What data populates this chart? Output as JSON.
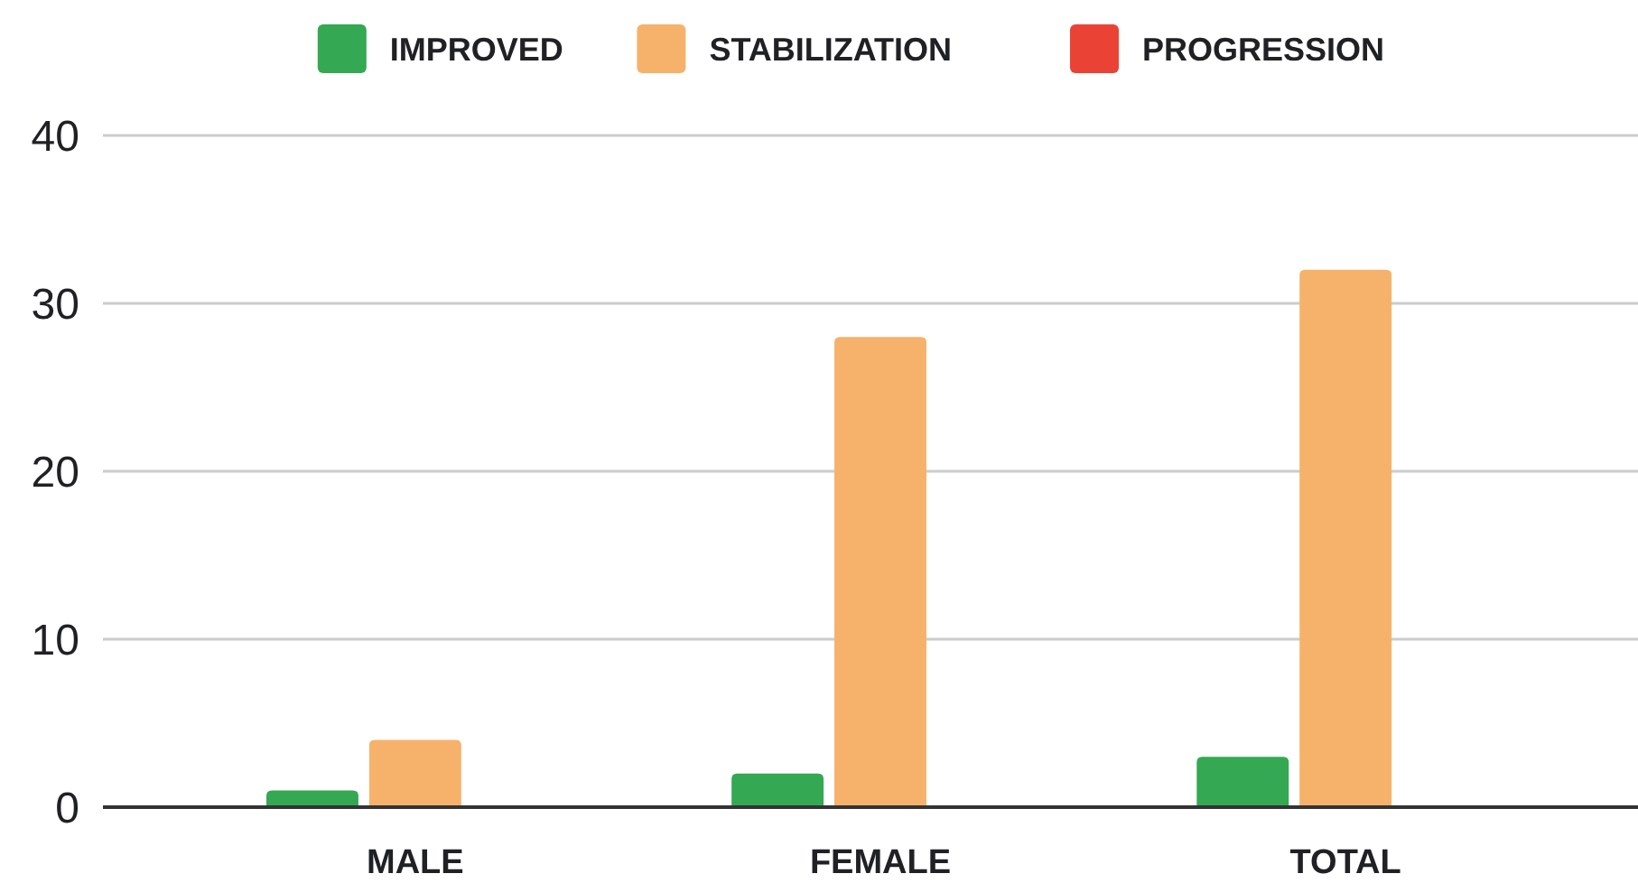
{
  "chart_data": {
    "type": "bar",
    "categories": [
      "MALE",
      "FEMALE",
      "TOTAL"
    ],
    "series": [
      {
        "name": "IMPROVED",
        "color": "#34a853",
        "values": [
          1,
          2,
          3
        ]
      },
      {
        "name": "STABILIZATION",
        "color": "#f6b26b",
        "values": [
          4,
          28,
          32
        ]
      },
      {
        "name": "PROGRESSION",
        "color": "#ea4335",
        "values": [
          0,
          0,
          0
        ]
      }
    ],
    "ylim": [
      0,
      40
    ],
    "yticks": [
      0,
      10,
      20,
      30,
      40
    ],
    "grid": "y",
    "legend": "top"
  }
}
